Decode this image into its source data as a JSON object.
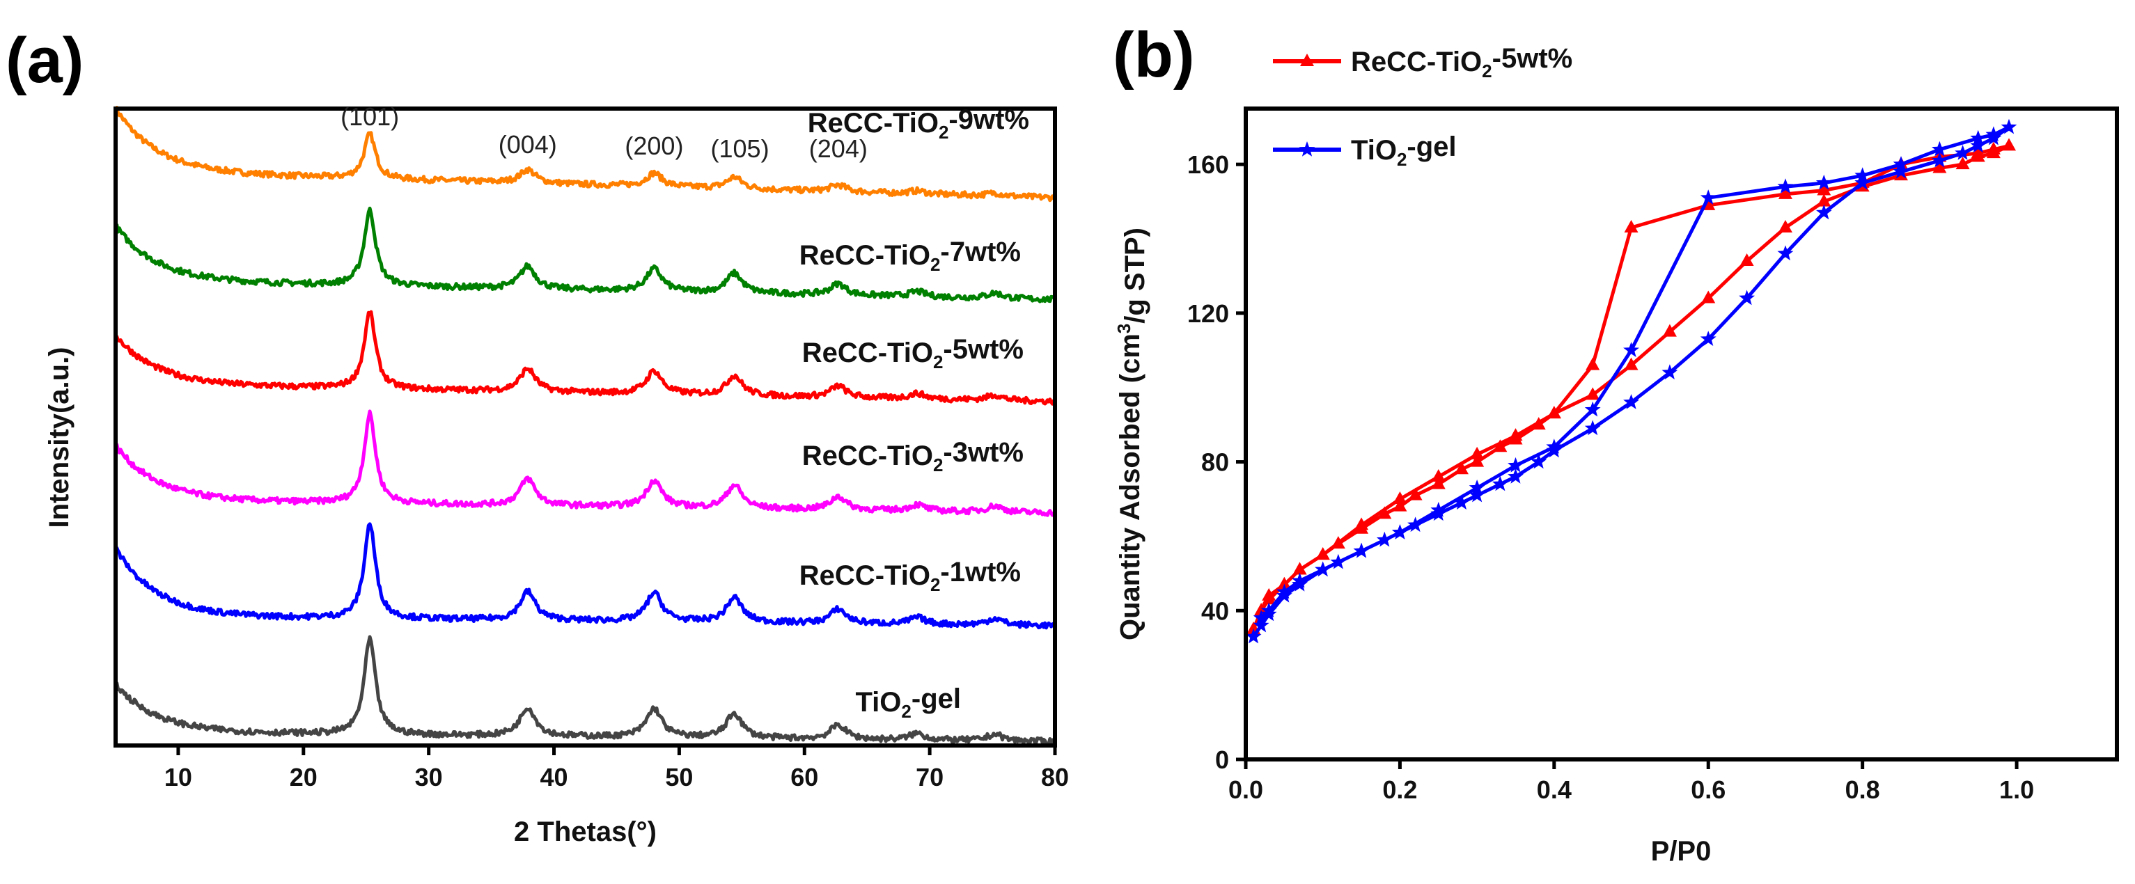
{
  "chart_data": [
    {
      "type": "line",
      "panel_label": "(a)",
      "title": "",
      "xlabel": "2 Thetas(°)",
      "ylabel": "Intensity(a.u.)",
      "xlim": [
        5,
        80
      ],
      "ylim": [
        0,
        100
      ],
      "xticks": [
        10,
        20,
        30,
        40,
        50,
        60,
        70,
        80
      ],
      "grid": false,
      "peaks": [
        {
          "pos": 25.3,
          "rel": 1.0,
          "label": "(101)"
        },
        {
          "pos": 37.9,
          "rel": 0.3,
          "label": "(004)"
        },
        {
          "pos": 48.0,
          "rel": 0.3,
          "label": "(200)"
        },
        {
          "pos": 54.4,
          "rel": 0.26,
          "label": "(105)"
        },
        {
          "pos": 62.7,
          "rel": 0.15,
          "label": "(204)"
        },
        {
          "pos": 69.0,
          "rel": 0.07,
          "label": ""
        },
        {
          "pos": 75.2,
          "rel": 0.07,
          "label": ""
        }
      ],
      "series": [
        {
          "name": "ReCC-TiO2-9wt%",
          "color": "#ff8000",
          "start": 99,
          "baseline": 89,
          "end": 86,
          "peak": 96
        },
        {
          "name": "ReCC-TiO2-7wt%",
          "color": "#008000",
          "start": 80.8,
          "baseline": 72.2,
          "end": 70,
          "peak": 84
        },
        {
          "name": "ReCC-TiO2-5wt%",
          "color": "#ff0000",
          "start": 63.7,
          "baseline": 56,
          "end": 54,
          "peak": 68
        },
        {
          "name": "ReCC-TiO2-3wt%",
          "color": "#ff00ff",
          "start": 46.6,
          "baseline": 38,
          "end": 36.5,
          "peak": 52
        },
        {
          "name": "ReCC-TiO2-1wt%",
          "color": "#0000ff",
          "start": 30.6,
          "baseline": 19.9,
          "end": 18.8,
          "peak": 34.8
        },
        {
          "name": "TiO2-gel",
          "color": "#444444",
          "start": 9.2,
          "baseline": 1.7,
          "end": 0.6,
          "peak": 16.7
        }
      ]
    },
    {
      "type": "line",
      "panel_label": "(b)",
      "title": "",
      "xlabel": "P/P0",
      "ylabel": "Quantity Adsorbed (cm3/g STP)",
      "xlim": [
        0,
        1.13
      ],
      "ylim": [
        0,
        175
      ],
      "xticks": [
        0.0,
        0.2,
        0.4,
        0.6,
        0.8,
        1.0
      ],
      "yticks": [
        0,
        40,
        80,
        120,
        160
      ],
      "grid": false,
      "legend_position": "top-left",
      "series": [
        {
          "name": "ReCC-TiO2-5wt%",
          "color": "#ff0000",
          "marker": "triangle",
          "x": [
            0.01,
            0.02,
            0.03,
            0.05,
            0.07,
            0.1,
            0.12,
            0.15,
            0.18,
            0.2,
            0.22,
            0.25,
            0.28,
            0.3,
            0.33,
            0.35,
            0.38,
            0.4,
            0.45,
            0.5,
            0.55,
            0.6,
            0.65,
            0.7,
            0.75,
            0.8,
            0.85,
            0.9,
            0.93,
            0.95,
            0.97,
            0.99,
            0.97,
            0.95,
            0.9,
            0.85,
            0.8,
            0.75,
            0.7,
            0.6,
            0.5,
            0.45,
            0.4,
            0.35,
            0.3,
            0.25,
            0.2,
            0.15,
            0.1,
            0.07,
            0.05,
            0.03,
            0.02
          ],
          "y": [
            35,
            40,
            43,
            47,
            51,
            55,
            58,
            62,
            66,
            68,
            71,
            74,
            78,
            80,
            84,
            86,
            90,
            93,
            98,
            106,
            115,
            124,
            134,
            143,
            150,
            154,
            157,
            159,
            160,
            162,
            163,
            165,
            164,
            163,
            162,
            160,
            155,
            153,
            152,
            149,
            143,
            106,
            93,
            87,
            82,
            76,
            70,
            63,
            55,
            51,
            47,
            44,
            40
          ]
        },
        {
          "name": "TiO2-gel",
          "color": "#0000ff",
          "marker": "star",
          "x": [
            0.01,
            0.02,
            0.03,
            0.05,
            0.07,
            0.1,
            0.12,
            0.15,
            0.18,
            0.2,
            0.22,
            0.25,
            0.28,
            0.3,
            0.33,
            0.35,
            0.38,
            0.4,
            0.45,
            0.5,
            0.55,
            0.6,
            0.65,
            0.7,
            0.75,
            0.8,
            0.85,
            0.9,
            0.93,
            0.95,
            0.97,
            0.99,
            0.97,
            0.95,
            0.9,
            0.85,
            0.8,
            0.75,
            0.7,
            0.6,
            0.5,
            0.45,
            0.4,
            0.35,
            0.3,
            0.25,
            0.2,
            0.15,
            0.1,
            0.07,
            0.05,
            0.03,
            0.02
          ],
          "y": [
            33,
            36,
            39,
            44,
            47,
            51,
            53,
            56,
            59,
            61,
            63,
            66,
            69,
            71,
            74,
            76,
            80,
            83,
            89,
            96,
            104,
            113,
            124,
            136,
            147,
            155,
            158,
            161,
            163,
            165,
            167,
            170,
            168,
            167,
            164,
            160,
            157,
            155,
            154,
            151,
            110,
            94,
            84,
            79,
            73,
            67,
            61,
            56,
            51,
            48,
            45,
            40,
            38
          ]
        }
      ]
    }
  ]
}
